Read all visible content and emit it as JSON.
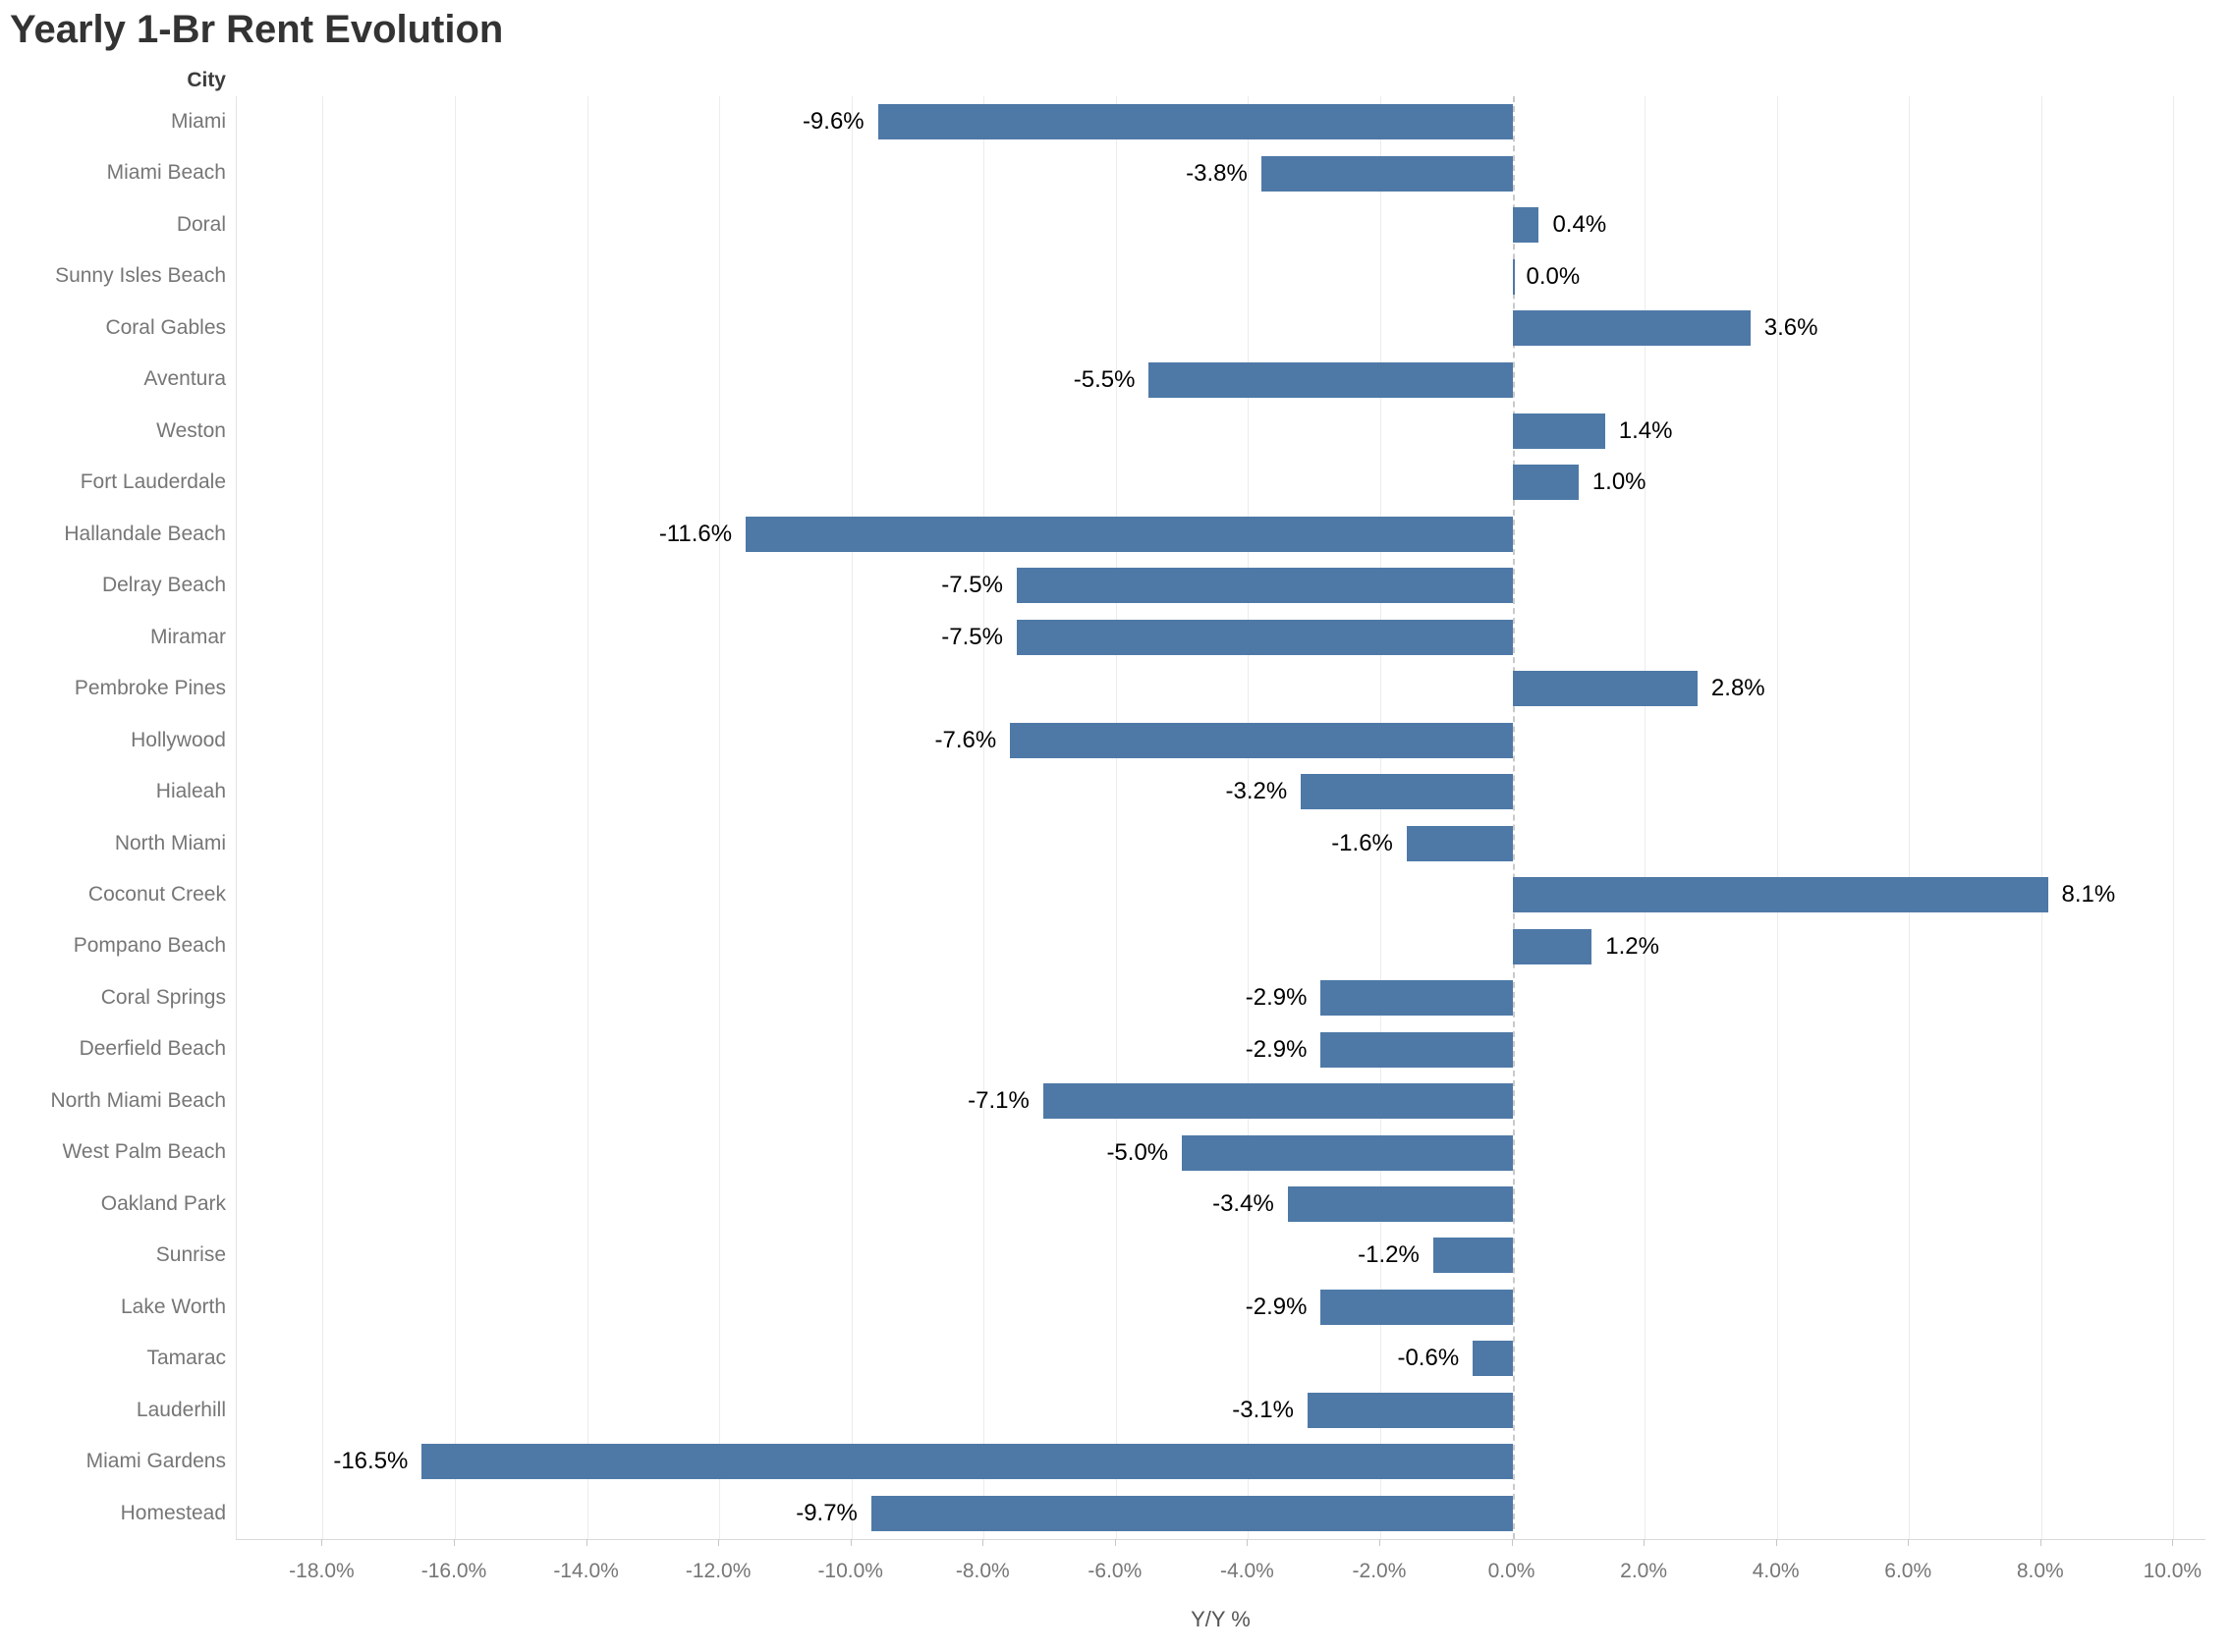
{
  "title": "Yearly 1-Br Rent Evolution",
  "row_header": "City",
  "x_axis_title": "Y/Y %",
  "colors": {
    "bar": "#4e79a7",
    "gridline": "#ececec",
    "zero_line": "#c9c9c9",
    "axis_line": "#d9d9d9",
    "value_label_text": "#000000",
    "city_label_text": "#767676",
    "tick_label_text": "#767676",
    "title_text": "#333333"
  },
  "chart_data": {
    "type": "bar",
    "orientation": "horizontal",
    "title": "Yearly 1-Br Rent Evolution",
    "xlabel": "Y/Y %",
    "ylabel": "City",
    "categories": [
      "Miami",
      "Miami Beach",
      "Doral",
      "Sunny Isles Beach",
      "Coral Gables",
      "Aventura",
      "Weston",
      "Fort Lauderdale",
      "Hallandale Beach",
      "Delray Beach",
      "Miramar",
      "Pembroke Pines",
      "Hollywood",
      "Hialeah",
      "North Miami",
      "Coconut Creek",
      "Pompano Beach",
      "Coral Springs",
      "Deerfield Beach",
      "North Miami Beach",
      "West Palm Beach",
      "Oakland Park",
      "Sunrise",
      "Lake Worth",
      "Tamarac",
      "Lauderhill",
      "Miami Gardens",
      "Homestead"
    ],
    "values": [
      -9.6,
      -3.8,
      0.4,
      0.0,
      3.6,
      -5.5,
      1.4,
      1.0,
      -11.6,
      -7.5,
      -7.5,
      2.8,
      -7.6,
      -3.2,
      -1.6,
      8.1,
      1.2,
      -2.9,
      -2.9,
      -7.1,
      -5.0,
      -3.4,
      -1.2,
      -2.9,
      -0.6,
      -3.1,
      -16.5,
      -9.7
    ],
    "value_labels": [
      "-9.6%",
      "-3.8%",
      "0.4%",
      "0.0%",
      "3.6%",
      "-5.5%",
      "1.4%",
      "1.0%",
      "-11.6%",
      "-7.5%",
      "-7.5%",
      "2.8%",
      "-7.6%",
      "-3.2%",
      "-1.6%",
      "8.1%",
      "1.2%",
      "-2.9%",
      "-2.9%",
      "-7.1%",
      "-5.0%",
      "-3.4%",
      "-1.2%",
      "-2.9%",
      "-0.6%",
      "-3.1%",
      "-16.5%",
      "-9.7%"
    ],
    "xlim": [
      -19.3,
      10.5
    ],
    "xticks": [
      -18,
      -16,
      -14,
      -12,
      -10,
      -8,
      -6,
      -4,
      -2,
      0,
      2,
      4,
      6,
      8,
      10
    ],
    "xtick_labels": [
      "-18.0%",
      "-16.0%",
      "-14.0%",
      "-12.0%",
      "-10.0%",
      "-8.0%",
      "-6.0%",
      "-4.0%",
      "-2.0%",
      "0.0%",
      "2.0%",
      "4.0%",
      "6.0%",
      "8.0%",
      "10.0%"
    ],
    "grid": true,
    "legend": false,
    "zero_line_style": "dashed"
  }
}
